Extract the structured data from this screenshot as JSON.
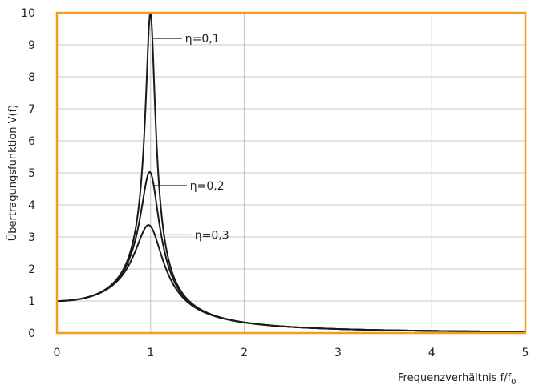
{
  "chart_data": {
    "type": "line",
    "title": "",
    "xlabel": "Frequenzverhältnis f/f",
    "xlabel_sub": "0",
    "ylabel": "Übertragungsfunktion V(f)",
    "xlim": [
      0,
      5
    ],
    "ylim": [
      0,
      10
    ],
    "xticks": [
      0,
      1,
      2,
      3,
      4,
      5
    ],
    "yticks": [
      0,
      1,
      2,
      3,
      4,
      5,
      6,
      7,
      8,
      9,
      10
    ],
    "grid": true,
    "colors": {
      "frame": "#f39c1f",
      "grid": "#b5b5b5",
      "line": "#1a1a1a"
    },
    "series": [
      {
        "eta": 0.1,
        "label": "η=0,1",
        "peak": 10.0
      },
      {
        "eta": 0.2,
        "label": "η=0,2",
        "peak": 5.0
      },
      {
        "eta": 0.3,
        "label": "η=0,3",
        "peak": 3.33
      }
    ]
  }
}
